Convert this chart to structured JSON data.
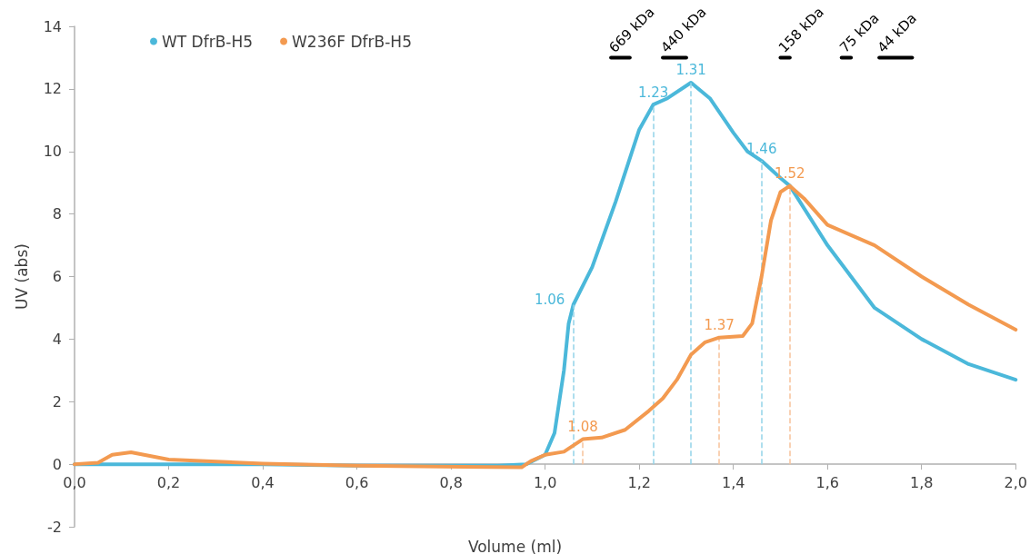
{
  "chart_data": {
    "type": "line",
    "xlabel": "Volume (ml)",
    "ylabel": "UV (abs)",
    "xlim": [
      0,
      2
    ],
    "xticks": [
      {
        "value": 0,
        "label": "0,0"
      },
      {
        "value": 0.2,
        "label": "0,2"
      },
      {
        "value": 0.4,
        "label": "0,4"
      },
      {
        "value": 0.6,
        "label": "0,6"
      },
      {
        "value": 0.8,
        "label": "0,8"
      },
      {
        "value": 1,
        "label": "1,0"
      },
      {
        "value": 1.2,
        "label": "1,2"
      },
      {
        "value": 1.4,
        "label": "1,4"
      },
      {
        "value": 1.6,
        "label": "1,6"
      },
      {
        "value": 1.8,
        "label": "1,8"
      },
      {
        "value": 2,
        "label": "2,0"
      }
    ],
    "ylim": [
      -2,
      14
    ],
    "yticks": [
      -2,
      0,
      2,
      4,
      6,
      8,
      10,
      12,
      14
    ],
    "grid": false,
    "legend": "top left",
    "marker": "none",
    "line_style": "solid",
    "series": [
      {
        "name": "WT DfrB-H5",
        "color": "#4bb8da",
        "x": [
          0,
          0.2,
          0.4,
          0.6,
          0.8,
          0.9,
          0.96,
          1.0,
          1.02,
          1.04,
          1.05,
          1.06,
          1.1,
          1.15,
          1.2,
          1.23,
          1.26,
          1.31,
          1.35,
          1.4,
          1.43,
          1.46,
          1.5,
          1.52,
          1.6,
          1.7,
          1.8,
          1.9,
          2.0
        ],
        "values": [
          0,
          0,
          0,
          -0.05,
          -0.05,
          -0.05,
          0,
          0.3,
          1,
          3,
          4.5,
          5.1,
          6.3,
          8.4,
          10.7,
          11.5,
          11.7,
          12.2,
          11.7,
          10.6,
          10,
          9.7,
          9.15,
          8.9,
          7.0,
          5.0,
          4.0,
          3.2,
          2.7
        ]
      },
      {
        "color": "#000000",
        "x": [
          1.14,
          1.18
        ],
        "values": [
          13,
          13
        ]
      },
      {
        "color": "#000000",
        "x": [
          1.25,
          1.3
        ],
        "values": [
          13,
          13
        ]
      },
      {
        "color": "#000000",
        "x": [
          1.5,
          1.52
        ],
        "values": [
          13,
          13
        ]
      },
      {
        "color": "#000000",
        "x": [
          1.63,
          1.65
        ],
        "values": [
          13,
          13
        ]
      },
      {
        "color": "#000000",
        "x": [
          1.71,
          1.78
        ],
        "values": [
          13,
          13
        ]
      },
      {
        "name": "W236F DfrB-H5",
        "color": "#f39a50",
        "x": [
          0,
          0.05,
          0.08,
          0.12,
          0.2,
          0.4,
          0.6,
          0.95,
          0.97,
          1.0,
          1.04,
          1.08,
          1.12,
          1.17,
          1.22,
          1.25,
          1.28,
          1.31,
          1.34,
          1.37,
          1.42,
          1.44,
          1.46,
          1.48,
          1.5,
          1.52,
          1.55,
          1.6,
          1.7,
          1.8,
          1.9,
          2.0
        ],
        "values": [
          0,
          0.05,
          0.3,
          0.38,
          0.15,
          0.02,
          -0.05,
          -0.1,
          0.1,
          0.3,
          0.4,
          0.8,
          0.85,
          1.1,
          1.7,
          2.1,
          2.7,
          3.5,
          3.9,
          4.05,
          4.1,
          4.5,
          6.0,
          7.8,
          8.7,
          8.9,
          8.5,
          7.65,
          7.0,
          6.0,
          5.1,
          4.3
        ]
      }
    ],
    "ref_lines": [
      {
        "axis": "x",
        "value": 1.06,
        "label": "1.06",
        "color": "#93d4e9",
        "line_style": "dashed"
      },
      {
        "axis": "x",
        "value": 1.23,
        "label": "1.23",
        "color": "#93d4e9",
        "line_style": "dashed"
      },
      {
        "axis": "x",
        "value": 1.31,
        "label": "1.31",
        "color": "#93d4e9",
        "line_style": "dashed"
      },
      {
        "axis": "x",
        "value": 1.46,
        "label": "1.46",
        "color": "#93d4e9",
        "line_style": "dashed"
      },
      {
        "axis": "x",
        "value": 1.08,
        "label": "1.08",
        "color": "#f8c29a",
        "line_style": "dashed"
      },
      {
        "axis": "x",
        "value": 1.37,
        "label": "1.37",
        "color": "#f8c29a",
        "line_style": "dashed"
      },
      {
        "axis": "x",
        "value": 1.52,
        "label": "1.52",
        "color": "#f8c29a",
        "line_style": "dashed"
      }
    ],
    "annotations": [
      "669 kDa",
      "440 kDa",
      "158 kDa",
      "75 kDa",
      "44 kDa"
    ]
  }
}
